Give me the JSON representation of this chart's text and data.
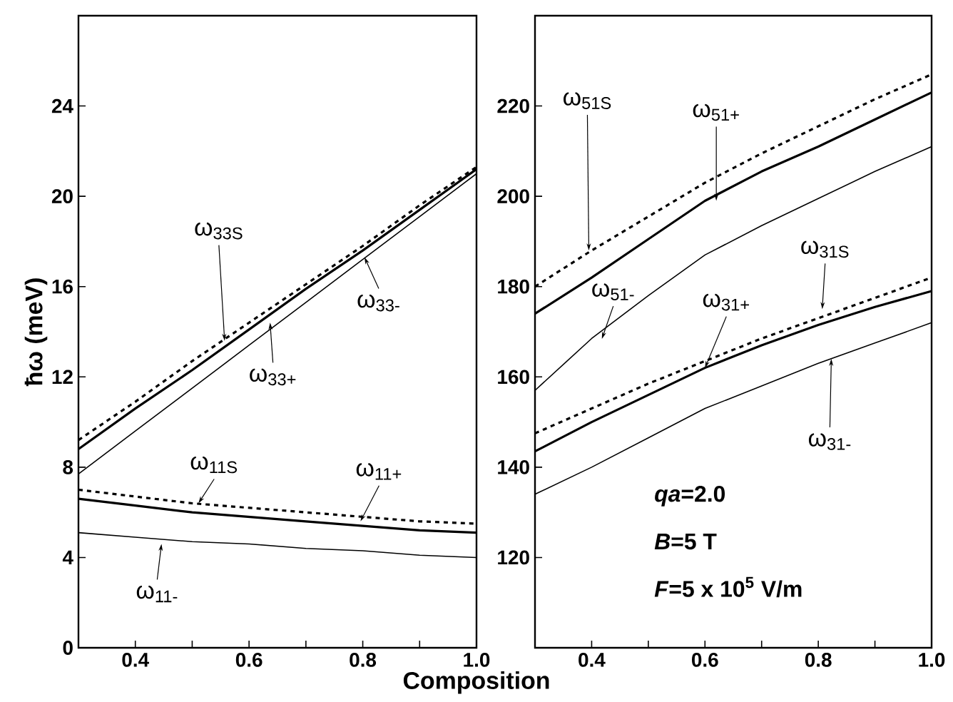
{
  "chart_data": [
    {
      "type": "line",
      "xlabel": "Composition",
      "ylabel": "ħω (meV)",
      "xlim": [
        0.3,
        1.0
      ],
      "ylim": [
        0,
        28
      ],
      "xticks": [
        {
          "value": 0.3,
          "label": null
        },
        0.4,
        {
          "value": 0.5,
          "label": null
        },
        0.6,
        {
          "value": 0.7,
          "label": null
        },
        0.8,
        {
          "value": 0.9,
          "label": null
        },
        {
          "value": 1.0,
          "label": "1.0"
        }
      ],
      "yticks": [
        0,
        4,
        8,
        12,
        16,
        20,
        24
      ],
      "series": [
        {
          "color": "#000000",
          "line_style": "dashed",
          "x": [
            0.3,
            0.4,
            0.5,
            0.6,
            0.7,
            0.8,
            0.9,
            1.0
          ],
          "values": [
            9.2,
            10.9,
            12.7,
            14.4,
            16.1,
            17.8,
            19.6,
            21.3
          ]
        },
        {
          "color": "#000000",
          "line_style": "solid",
          "x": [
            0.3,
            0.4,
            0.5,
            0.6,
            0.7,
            0.8,
            0.9,
            1.0
          ],
          "values": [
            8.8,
            10.6,
            12.3,
            14.1,
            15.9,
            17.6,
            19.4,
            21.2
          ]
        },
        {
          "color": "#000000",
          "line_style": "solid",
          "x": [
            0.3,
            0.4,
            0.5,
            0.6,
            0.7,
            0.8,
            0.9,
            1.0
          ],
          "values": [
            7.7,
            9.6,
            11.5,
            13.4,
            15.3,
            17.2,
            19.1,
            21.0
          ]
        },
        {
          "color": "#000000",
          "line_style": "dashed",
          "x": [
            0.3,
            0.4,
            0.5,
            0.6,
            0.7,
            0.8,
            0.9,
            1.0
          ],
          "values": [
            7.0,
            6.7,
            6.4,
            6.2,
            6.0,
            5.8,
            5.6,
            5.5
          ]
        },
        {
          "color": "#000000",
          "line_style": "solid",
          "x": [
            0.3,
            0.4,
            0.5,
            0.6,
            0.7,
            0.8,
            0.9,
            1.0
          ],
          "values": [
            6.6,
            6.3,
            6.0,
            5.8,
            5.6,
            5.4,
            5.2,
            5.1
          ]
        },
        {
          "color": "#000000",
          "line_style": "solid",
          "x": [
            0.3,
            0.4,
            0.5,
            0.6,
            0.7,
            0.8,
            0.9,
            1.0
          ],
          "values": [
            5.1,
            4.9,
            4.7,
            4.6,
            4.4,
            4.3,
            4.1,
            4.0
          ]
        }
      ],
      "annotations": [
        {
          "text": "ω$_{33S}$",
          "x": 0.557,
          "y": 13.6
        },
        {
          "text": "ω$_{33+}$",
          "x": 0.637,
          "y": 14.4
        },
        {
          "text": "ω$_{33-}$",
          "x": 0.803,
          "y": 17.3
        },
        {
          "text": "ω$_{11S}$",
          "x": 0.511,
          "y": 6.4
        },
        {
          "text": "ω$_{11+}$",
          "x": 0.796,
          "y": 5.6
        },
        {
          "text": "ω$_{11-}$",
          "x": 0.446,
          "y": 4.6
        }
      ]
    },
    {
      "type": "line",
      "xlim": [
        0.3,
        1.0
      ],
      "ylim": [
        100,
        240
      ],
      "xticks": [
        {
          "value": 0.3,
          "label": null
        },
        0.4,
        {
          "value": 0.5,
          "label": null
        },
        0.6,
        {
          "value": 0.7,
          "label": null
        },
        0.8,
        {
          "value": 0.9,
          "label": null
        },
        {
          "value": 1.0,
          "label": "1.0"
        }
      ],
      "yticks": [
        120,
        140,
        160,
        180,
        200,
        220
      ],
      "series": [
        {
          "color": "#000000",
          "line_style": "dashed",
          "x": [
            0.3,
            0.4,
            0.5,
            0.6,
            0.7,
            0.8,
            0.9,
            1.0
          ],
          "values": [
            180,
            188,
            195.5,
            203,
            209.5,
            215.5,
            221.5,
            227
          ]
        },
        {
          "color": "#000000",
          "line_style": "solid",
          "x": [
            0.3,
            0.4,
            0.5,
            0.6,
            0.7,
            0.8,
            0.9,
            1.0
          ],
          "values": [
            174,
            182,
            190.5,
            199,
            205.5,
            211,
            217,
            223
          ]
        },
        {
          "color": "#000000",
          "line_style": "solid",
          "x": [
            0.3,
            0.4,
            0.5,
            0.6,
            0.7,
            0.8,
            0.9,
            1.0
          ],
          "values": [
            157,
            168.5,
            178,
            187,
            193.5,
            199.5,
            205.5,
            211
          ]
        },
        {
          "color": "#000000",
          "line_style": "dashed",
          "x": [
            0.3,
            0.4,
            0.5,
            0.6,
            0.7,
            0.8,
            0.9,
            1.0
          ],
          "values": [
            147.5,
            153,
            158.5,
            163.5,
            168.5,
            173,
            177.5,
            182
          ]
        },
        {
          "color": "#000000",
          "line_style": "solid",
          "x": [
            0.3,
            0.4,
            0.5,
            0.6,
            0.7,
            0.8,
            0.9,
            1.0
          ],
          "values": [
            143.5,
            150,
            156,
            162,
            167,
            171.5,
            175.5,
            179
          ]
        },
        {
          "color": "#000000",
          "line_style": "solid",
          "x": [
            0.3,
            0.4,
            0.5,
            0.6,
            0.7,
            0.8,
            0.9,
            1.0
          ],
          "values": [
            134,
            140,
            146.5,
            153,
            158,
            163,
            167.5,
            172
          ]
        }
      ],
      "annotations": [
        {
          "text": "ω$_{51S}$",
          "x": 0.395,
          "y": 188
        },
        {
          "text": "ω$_{51+}$",
          "x": 0.62,
          "y": 199
        },
        {
          "text": "ω$_{51-}$",
          "x": 0.418,
          "y": 168.4
        },
        {
          "text": "ω$_{31+}$",
          "x": 0.6,
          "y": 162
        },
        {
          "text": "ω$_{31S}$",
          "x": 0.807,
          "y": 175
        },
        {
          "text": "ω$_{31-}$",
          "x": 0.823,
          "y": 164
        },
        "*qa*=2.0",
        "*B*=5 T",
        "*F*=5 x 10$^{5}$ V/m"
      ]
    }
  ]
}
